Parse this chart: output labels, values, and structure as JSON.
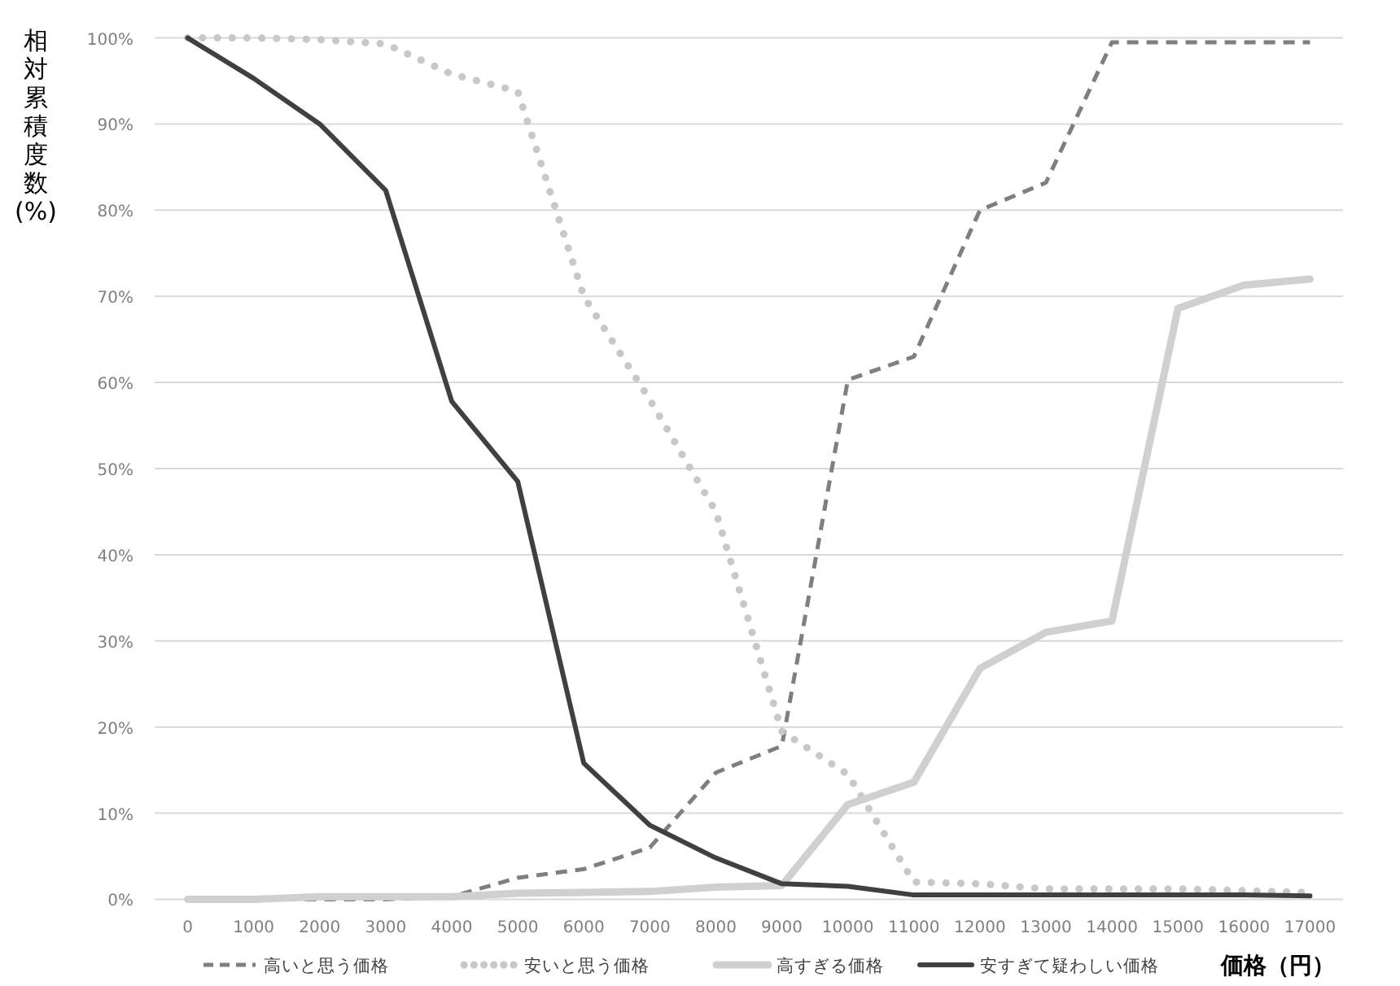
{
  "chart_data": {
    "type": "line",
    "xlabel": "価格（円）",
    "ylabel": "相対累積度数(%)",
    "categories": [
      "0",
      "1000",
      "2000",
      "3000",
      "4000",
      "5000",
      "6000",
      "7000",
      "8000",
      "9000",
      "10000",
      "11000",
      "12000",
      "13000",
      "14000",
      "15000",
      "16000",
      "17000"
    ],
    "ylim": [
      0,
      100
    ],
    "yticks": [
      {
        "value": 0,
        "label": "0%"
      },
      {
        "value": 10,
        "label": "10%"
      },
      {
        "value": 20,
        "label": "20%"
      },
      {
        "value": 30,
        "label": "30%"
      },
      {
        "value": 40,
        "label": "40%"
      },
      {
        "value": 50,
        "label": "50%"
      },
      {
        "value": 60,
        "label": "60%"
      },
      {
        "value": 70,
        "label": "70%"
      },
      {
        "value": 80,
        "label": "80%"
      },
      {
        "value": 90,
        "label": "90%"
      },
      {
        "value": 100,
        "label": "100%"
      }
    ],
    "grid": "y",
    "legend": "bottom",
    "marker": "none",
    "series": [
      {
        "name": "高いと思う価格",
        "color": "#7f7f7f",
        "line_style": "dashed",
        "values": [
          0,
          0,
          0,
          0,
          0.3,
          2.5,
          3.5,
          6,
          14.7,
          17.8,
          60.3,
          63,
          80,
          83.2,
          99.5,
          99.5,
          99.5,
          99.5
        ]
      },
      {
        "name": "安いと思う価格",
        "color": "#c8c8c8",
        "line_style": "dotted",
        "values": [
          100,
          100,
          99.8,
          99.3,
          95.8,
          93.8,
          70,
          58,
          45,
          19.5,
          14.5,
          2,
          1.8,
          1.2,
          1.2,
          1.2,
          1,
          0.8
        ]
      },
      {
        "name": "高すぎる価格",
        "color": "#d0d0d0",
        "line_style": "solid",
        "values": [
          0,
          0,
          0.3,
          0.3,
          0.3,
          0.7,
          0.8,
          0.9,
          1.4,
          1.6,
          11,
          13.6,
          26.8,
          31,
          32.3,
          68.6,
          71.3,
          72
        ]
      },
      {
        "name": "安すぎて疑わしい価格",
        "color": "#404040",
        "line_style": "solid",
        "values": [
          100,
          95.3,
          90,
          82.3,
          57.8,
          48.5,
          15.8,
          8.6,
          4.8,
          1.8,
          1.5,
          0.5,
          0.5,
          0.5,
          0.5,
          0.5,
          0.5,
          0.4
        ]
      }
    ]
  }
}
